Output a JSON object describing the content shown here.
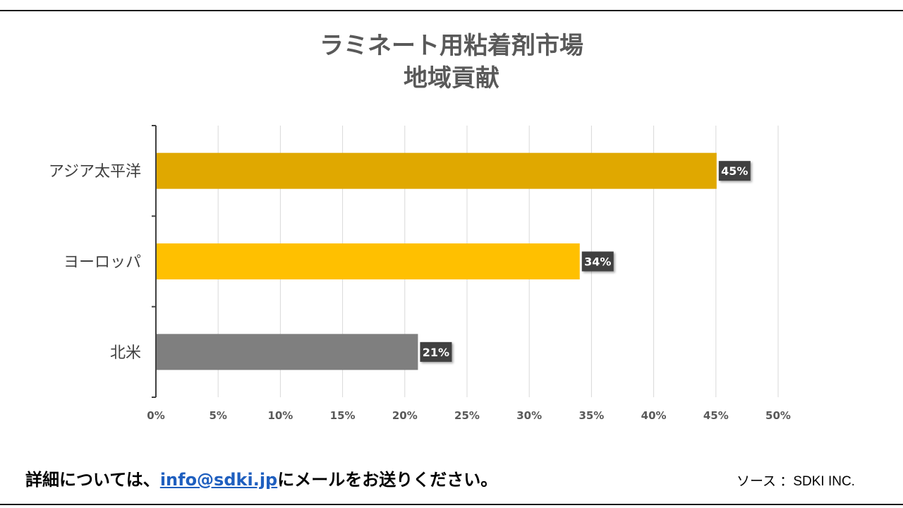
{
  "chart_data": {
    "type": "bar",
    "orientation": "horizontal",
    "title_line1": "ラミネート用粘着剤市場",
    "title_line2": "地域貢献",
    "categories": [
      "アジア太平洋",
      "ヨーロッパ",
      "北米"
    ],
    "values": [
      45,
      34,
      21
    ],
    "data_labels": [
      "45%",
      "34%",
      "21%"
    ],
    "colors": [
      "#E0A800",
      "#FFC000",
      "#7F7F7F"
    ],
    "xlim": [
      0,
      50
    ],
    "x_ticks": [
      "0%",
      "5%",
      "10%",
      "15%",
      "20%",
      "25%",
      "30%",
      "35%",
      "40%",
      "45%",
      "50%"
    ],
    "grid": true
  },
  "footer": {
    "text_before": "詳細については、",
    "email": "info@sdki.jp",
    "text_after": "にメールをお送りください。",
    "source": "ソース ：SDKI INC."
  }
}
